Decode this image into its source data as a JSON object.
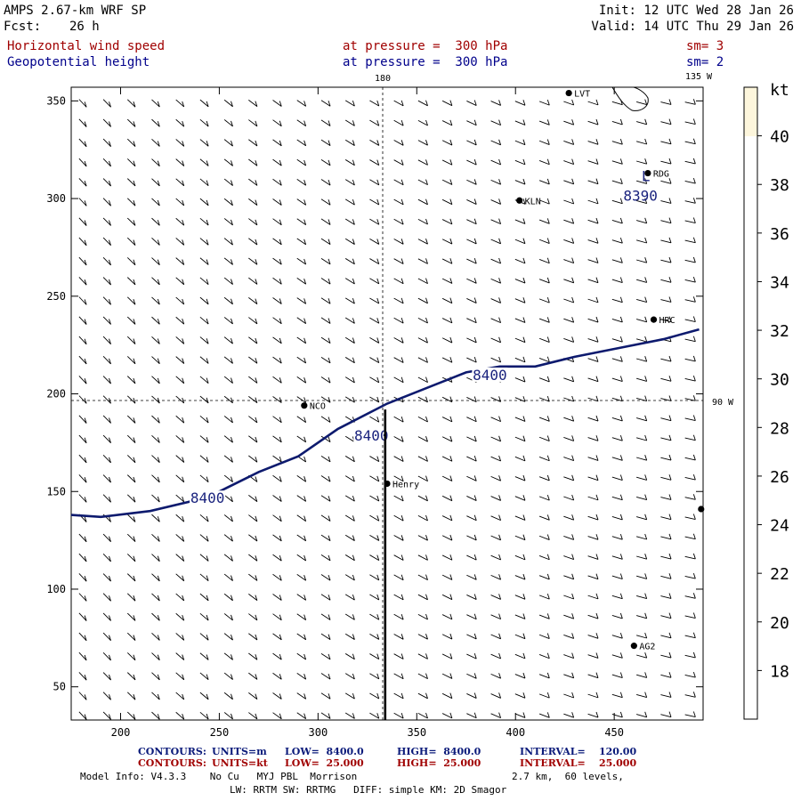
{
  "header": {
    "model": "AMPS 2.67-km WRF SP",
    "fcst_label": "Fcst:",
    "fcst_value": "26 h",
    "init": "Init: 12 UTC Wed 28 Jan 26",
    "valid": "Valid: 14 UTC Thu 29 Jan 26",
    "field1_name": "Horizontal wind speed",
    "field1_level": "at pressure =  300 hPa",
    "field1_sm": "sm= 3",
    "field2_name": "Geopotential height",
    "field2_level": "at pressure =  300 hPa",
    "field2_sm": "sm= 2"
  },
  "map": {
    "meridian_180_label": "180",
    "meridian_135w_label": "135 W",
    "meridian_90w_label": "90 W",
    "background_color": "#ffffff",
    "contour_color": "#0d1a6e"
  },
  "chart_data": {
    "type": "map",
    "x_ticks": [
      "200",
      "250",
      "300",
      "350",
      "400",
      "450"
    ],
    "y_ticks": [
      "50",
      "100",
      "150",
      "200",
      "250",
      "300",
      "350"
    ],
    "x_tick_values": [
      200,
      250,
      300,
      350,
      400,
      450
    ],
    "y_tick_values": [
      50,
      100,
      150,
      200,
      250,
      300,
      350
    ],
    "xlim": [
      175,
      495
    ],
    "ylim": [
      33,
      357
    ],
    "height_contour": {
      "value": "8400",
      "points": [
        [
          175,
          138
        ],
        [
          190,
          137
        ],
        [
          215,
          140
        ],
        [
          240,
          146
        ],
        [
          250,
          150
        ],
        [
          270,
          160
        ],
        [
          290,
          168
        ],
        [
          310,
          182
        ],
        [
          335,
          195
        ],
        [
          360,
          205
        ],
        [
          375,
          211
        ],
        [
          392,
          214
        ],
        [
          410,
          214
        ],
        [
          430,
          219
        ],
        [
          455,
          224
        ],
        [
          475,
          228
        ],
        [
          493,
          233
        ]
      ],
      "labels": [
        {
          "text": "8400",
          "x": 244,
          "y": 145
        },
        {
          "text": "8400",
          "x": 327,
          "y": 177
        },
        {
          "text": "8400",
          "x": 387,
          "y": 208
        }
      ]
    },
    "low_center": {
      "text": "L",
      "x": 466,
      "y": 309,
      "value": "8390"
    },
    "cross_section": {
      "x": 334,
      "y_from": 33,
      "y_to": 192
    },
    "stations": [
      {
        "name": "LVT",
        "x": 427,
        "y": 354
      },
      {
        "name": "RDG",
        "x": 467,
        "y": 313
      },
      {
        "name": "KLN",
        "x": 402,
        "y": 299
      },
      {
        "name": "HRC",
        "x": 470,
        "y": 238
      },
      {
        "name": "NCO",
        "x": 293,
        "y": 194
      },
      {
        "name": "Henry",
        "x": 335,
        "y": 154
      },
      {
        "name": "",
        "x": 494,
        "y": 141
      },
      {
        "name": "AG2",
        "x": 460,
        "y": 71
      }
    ],
    "colorbar": {
      "unit": "kt",
      "ticks": [
        "18",
        "20",
        "22",
        "24",
        "26",
        "28",
        "30",
        "32",
        "34",
        "36",
        "38",
        "40"
      ],
      "tick_values": [
        18,
        20,
        22,
        24,
        26,
        28,
        30,
        32,
        34,
        36,
        38,
        40
      ],
      "range": [
        16,
        42
      ],
      "fill_range": [
        40,
        42
      ],
      "fill_color": "#fdf6dc"
    }
  },
  "footer": {
    "contours1_label": "CONTOURS:",
    "contours1_units": "UNITS=m",
    "contours1_low": "LOW=  8400.0",
    "contours1_high": "HIGH=  8400.0",
    "contours1_interval": "INTERVAL=    120.00",
    "contours2_label": "CONTOURS:",
    "contours2_units": "UNITS=kt",
    "contours2_low": "LOW=  25.000",
    "contours2_high": "HIGH=  25.000",
    "contours2_interval": "INTERVAL=    25.000",
    "model_info": "Model Info: V4.3.3    No Cu   MYJ PBL  Morrison",
    "grid_info": "2.7 km,  60 levels,",
    "physics_info": "LW: RRTM SW: RRTMG   DIFF: simple KM: 2D Smagor"
  }
}
